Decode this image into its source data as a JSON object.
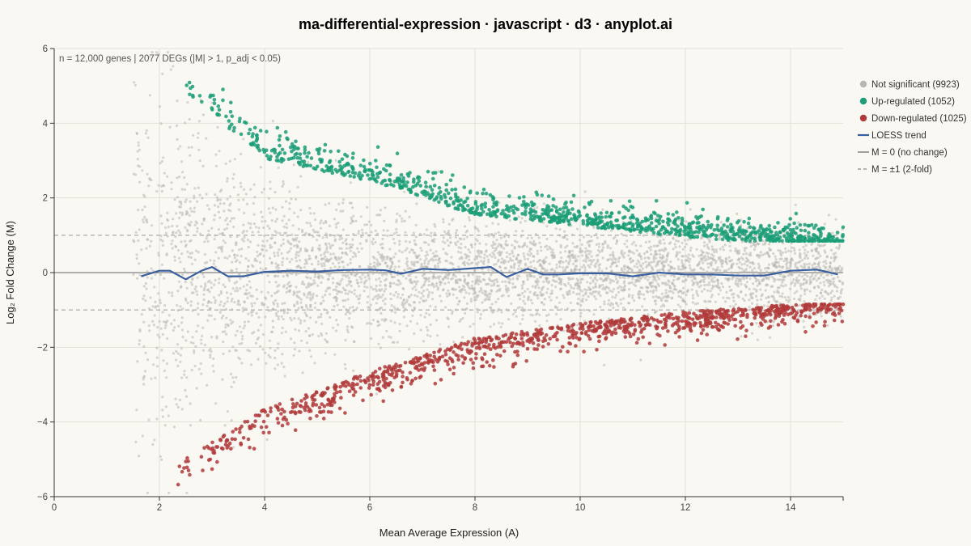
{
  "chart_data": {
    "type": "scatter",
    "title": "ma-differential-expression · javascript · d3 · anyplot.ai",
    "xlabel": "Mean Average Expression (A)",
    "ylabel": "Log₂ Fold Change (M)",
    "xlim": [
      0,
      15
    ],
    "ylim": [
      -6,
      6
    ],
    "x_ticks": [
      0,
      2,
      4,
      6,
      8,
      10,
      12,
      14
    ],
    "y_ticks": [
      -6,
      -4,
      -2,
      0,
      2,
      4,
      6
    ],
    "y_tick_labels": [
      "−6",
      "−4",
      "−2",
      "0",
      "2",
      "4",
      "6"
    ],
    "annotation": "n = 12,000 genes | 2077 DEGs (|M| > 1, p_adj < 0.05)",
    "grid": true,
    "legend_position": "right",
    "colors": {
      "not_significant": "#b8b6b0",
      "up": "#1a9e77",
      "down": "#b03a3a",
      "loess": "#3a5fa0",
      "reference": "#555555"
    },
    "series": [
      {
        "name": "Not significant (9923)",
        "count": 9923,
        "band": [
          -1,
          1
        ],
        "x_range": [
          1.5,
          15
        ]
      },
      {
        "name": "Up-regulated (1052)",
        "count": 1052,
        "x_range": [
          2.5,
          15
        ],
        "y_envelope": [
          [
            2.5,
            5.2
          ],
          [
            4,
            3.4
          ],
          [
            6,
            2.8
          ],
          [
            8,
            1.9
          ],
          [
            10,
            1.6
          ],
          [
            12,
            1.3
          ],
          [
            14,
            1.1
          ],
          [
            15,
            1.0
          ]
        ]
      },
      {
        "name": "Down-regulated (1025)",
        "count": 1025,
        "x_range": [
          2.3,
          15
        ],
        "y_envelope": [
          [
            2.3,
            -5.5
          ],
          [
            4,
            -4.0
          ],
          [
            6,
            -3.0
          ],
          [
            8,
            -2.1
          ],
          [
            10,
            -1.7
          ],
          [
            12,
            -1.4
          ],
          [
            14,
            -1.2
          ],
          [
            15,
            -1.1
          ]
        ]
      }
    ],
    "loess": {
      "name": "LOESS trend",
      "x": [
        1.65,
        2.0,
        2.2,
        2.5,
        2.8,
        3.0,
        3.3,
        3.6,
        4.0,
        4.5,
        5.0,
        5.5,
        6.0,
        6.3,
        6.6,
        7.0,
        7.5,
        8.0,
        8.3,
        8.6,
        9.0,
        9.3,
        9.6,
        10.0,
        10.5,
        11.0,
        11.5,
        12.0,
        12.5,
        13.0,
        13.5,
        14.0,
        14.5,
        14.9
      ],
      "y": [
        -0.1,
        0.05,
        0.05,
        -0.18,
        0.05,
        0.15,
        -0.1,
        -0.1,
        0.02,
        0.05,
        0.03,
        0.07,
        0.08,
        0.06,
        -0.03,
        0.1,
        0.07,
        0.12,
        0.15,
        -0.12,
        0.1,
        -0.05,
        -0.05,
        -0.02,
        -0.02,
        -0.1,
        0.0,
        -0.05,
        -0.05,
        -0.08,
        -0.08,
        0.05,
        0.08,
        -0.05
      ]
    },
    "reference_lines": [
      {
        "name": "M = 0 (no change)",
        "y": 0,
        "style": "solid"
      },
      {
        "name": "M = ±1 (2-fold)",
        "y": [
          1,
          -1
        ],
        "style": "dashed"
      }
    ]
  }
}
